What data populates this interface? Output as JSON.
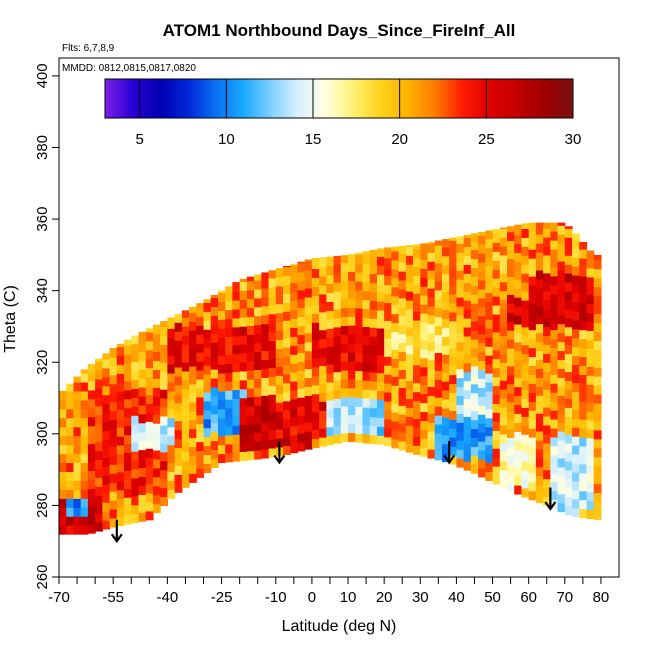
{
  "chart_data": {
    "type": "heatmap",
    "title": "ATOM1 Northbound Days_Since_FireInf_All",
    "annotations": {
      "flights": "Flts: 6,7,8,9",
      "dates": "MMDD: 0812,0815,0817,0820"
    },
    "xlabel": "Latitude (deg N)",
    "ylabel": "Theta (C)",
    "xlim": [
      -70,
      85
    ],
    "ylim": [
      260,
      405
    ],
    "x_major_ticks": [
      -70,
      -55,
      -40,
      -25,
      -10,
      0,
      10,
      20,
      30,
      40,
      50,
      60,
      70,
      80
    ],
    "x_major_tick_labels": [
      "-70",
      "-55",
      "-40",
      "-25",
      "-10",
      "0",
      "10",
      "20",
      "30",
      "40",
      "50",
      "60",
      "70",
      "80"
    ],
    "x_minor_ticks": [
      -65,
      -60,
      -50,
      -45,
      -35,
      -30,
      -20,
      -15,
      -5,
      5,
      15,
      25,
      35,
      45,
      55,
      65,
      75
    ],
    "y_ticks": [
      260,
      280,
      300,
      320,
      340,
      360,
      380,
      400
    ],
    "y_tick_labels": [
      "260",
      "280",
      "300",
      "320",
      "340",
      "360",
      "380",
      "400"
    ],
    "colorbar": {
      "range": [
        3,
        30
      ],
      "ticks": [
        5,
        10,
        15,
        20,
        25,
        30
      ],
      "tick_labels": [
        "5",
        "10",
        "15",
        "20",
        "25",
        "30"
      ],
      "colors": [
        "#7b1fe6",
        "#2a00d6",
        "#0000b0",
        "#0026d9",
        "#0a6df0",
        "#19a8ff",
        "#7ccfff",
        "#d8f0ff",
        "#ffffe0",
        "#fff275",
        "#ffd21c",
        "#ffb300",
        "#ff7a00",
        "#ff1a00",
        "#e00000",
        "#c20000",
        "#9e0000",
        "#7a1111"
      ],
      "placement": "top inside plot"
    },
    "grid": false,
    "arrows": [
      {
        "x": -54,
        "y_from": 276,
        "y_to": 270
      },
      {
        "x": -9,
        "y_from": 298,
        "y_to": 292
      },
      {
        "x": 38,
        "y_from": 298,
        "y_to": 292
      },
      {
        "x": 66,
        "y_from": 285,
        "y_to": 279
      }
    ],
    "field": {
      "description_grid": "latitude by theta, days since fire influence",
      "x_step": 2,
      "y_step": 2.5,
      "top_boundary": [
        [
          -70,
          311
        ],
        [
          -63,
          318
        ],
        [
          -55,
          324
        ],
        [
          -48,
          328
        ],
        [
          -40,
          332
        ],
        [
          -30,
          337
        ],
        [
          -20,
          343
        ],
        [
          -10,
          346
        ],
        [
          0,
          349
        ],
        [
          10,
          350
        ],
        [
          20,
          352
        ],
        [
          30,
          353
        ],
        [
          40,
          355
        ],
        [
          50,
          357
        ],
        [
          60,
          359
        ],
        [
          70,
          359
        ],
        [
          73,
          356
        ],
        [
          78,
          350
        ]
      ],
      "bottom_boundary": [
        [
          -70,
          272
        ],
        [
          -62,
          272
        ],
        [
          -55,
          274
        ],
        [
          -45,
          276
        ],
        [
          -38,
          283
        ],
        [
          -25,
          292
        ],
        [
          -15,
          293
        ],
        [
          -8,
          294
        ],
        [
          0,
          296
        ],
        [
          10,
          298
        ],
        [
          20,
          297
        ],
        [
          30,
          294
        ],
        [
          38,
          292
        ],
        [
          45,
          289
        ],
        [
          55,
          284
        ],
        [
          65,
          280
        ],
        [
          72,
          277
        ],
        [
          80,
          276
        ]
      ],
      "regions": [
        {
          "lat": [
            -70,
            -58
          ],
          "theta": [
            272,
            282
          ],
          "value": 26
        },
        {
          "lat": [
            -68,
            -62
          ],
          "theta": [
            278,
            282
          ],
          "value": 10
        },
        {
          "lat": [
            -62,
            -40
          ],
          "theta": [
            283,
            312
          ],
          "value": 24
        },
        {
          "lat": [
            -50,
            -38
          ],
          "theta": [
            296,
            304
          ],
          "value": 14
        },
        {
          "lat": [
            -30,
            -18
          ],
          "theta": [
            300,
            312
          ],
          "value": 11
        },
        {
          "lat": [
            -20,
            0
          ],
          "theta": [
            296,
            310
          ],
          "value": 26
        },
        {
          "lat": [
            -10,
            8
          ],
          "theta": [
            300,
            310
          ],
          "value": 25
        },
        {
          "lat": [
            5,
            20
          ],
          "theta": [
            300,
            310
          ],
          "value": 13
        },
        {
          "lat": [
            20,
            32
          ],
          "theta": [
            298,
            306
          ],
          "value": 22
        },
        {
          "lat": [
            34,
            50
          ],
          "theta": [
            293,
            305
          ],
          "value": 11
        },
        {
          "lat": [
            40,
            50
          ],
          "theta": [
            305,
            318
          ],
          "value": 14
        },
        {
          "lat": [
            52,
            62
          ],
          "theta": [
            285,
            300
          ],
          "value": 16
        },
        {
          "lat": [
            66,
            78
          ],
          "theta": [
            278,
            300
          ],
          "value": 14
        },
        {
          "lat": [
            -40,
            -10
          ],
          "theta": [
            318,
            330
          ],
          "value": 25
        },
        {
          "lat": [
            0,
            20
          ],
          "theta": [
            318,
            330
          ],
          "value": 25
        },
        {
          "lat": [
            20,
            40
          ],
          "theta": [
            322,
            332
          ],
          "value": 18
        },
        {
          "lat": [
            55,
            78
          ],
          "theta": [
            330,
            345
          ],
          "value": 26
        },
        {
          "lat": [
            40,
            60
          ],
          "theta": [
            338,
            346
          ],
          "value": 21
        }
      ],
      "background_value": 21
    }
  }
}
